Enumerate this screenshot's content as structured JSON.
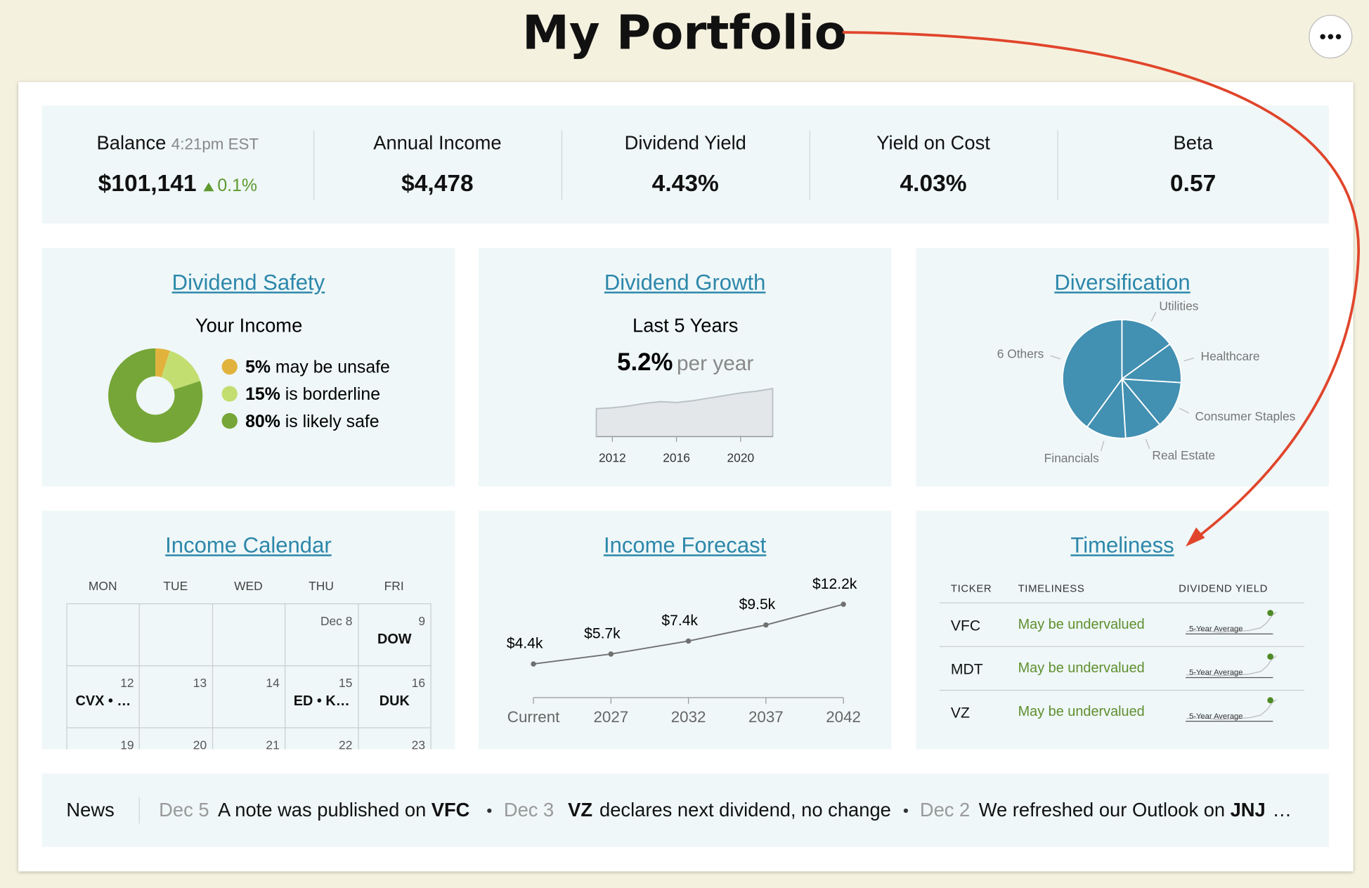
{
  "header": {
    "title": "My Portfolio"
  },
  "summary": {
    "balance": {
      "label": "Balance",
      "time": "4:21pm EST",
      "value": "$101,141",
      "change": "0.1%"
    },
    "stats": [
      {
        "label": "Annual Income",
        "value": "$4,478"
      },
      {
        "label": "Dividend Yield",
        "value": "4.43%"
      },
      {
        "label": "Yield on Cost",
        "value": "4.03%"
      },
      {
        "label": "Beta",
        "value": "0.57"
      }
    ]
  },
  "dividend_safety": {
    "title": "Dividend Safety",
    "chart_data": {
      "type": "donut",
      "title": "Your Income",
      "categories": [
        "may be unsafe",
        "is borderline",
        "is likely safe"
      ],
      "values": [
        5,
        15,
        80
      ],
      "value_labels": [
        "5%",
        "15%",
        "80%"
      ],
      "colors": [
        "#e2b33c",
        "#c3de70",
        "#76a637"
      ]
    }
  },
  "dividend_growth": {
    "title": "Dividend Growth",
    "subtitle": "Last 5 Years",
    "rate": "5.2%",
    "rate_unit": "per year",
    "chart_data": {
      "type": "area",
      "x": [
        2011,
        2012,
        2013,
        2014,
        2015,
        2016,
        2017,
        2018,
        2019,
        2020,
        2021,
        2022
      ],
      "values": [
        32,
        33,
        35,
        38,
        40,
        39,
        41,
        44,
        47,
        50,
        52,
        55
      ],
      "xlim": [
        2011,
        2022
      ],
      "xticks": [
        2012,
        2016,
        2020
      ],
      "ylim": [
        0,
        60
      ],
      "color": "#e3e7ea"
    }
  },
  "diversification": {
    "title": "Diversification",
    "chart_data": {
      "type": "pie",
      "categories": [
        "Utilities",
        "Healthcare",
        "Consumer Staples",
        "Real Estate",
        "Financials",
        "6 Others"
      ],
      "values": [
        15,
        11,
        13,
        10,
        11,
        40
      ],
      "color": "#4290b2"
    }
  },
  "income_calendar": {
    "title": "Income Calendar",
    "days": [
      "MON",
      "TUE",
      "WED",
      "THU",
      "FRI"
    ],
    "weeks": [
      [
        null,
        null,
        null,
        {
          "date": "Dec 8"
        },
        {
          "date": "9",
          "tickers": "DOW"
        }
      ],
      [
        {
          "date": "12",
          "tickers": "CVX • …"
        },
        {
          "date": "13"
        },
        {
          "date": "14"
        },
        {
          "date": "15",
          "tickers": "ED • K…"
        },
        {
          "date": "16",
          "tickers": "DUK"
        }
      ],
      [
        {
          "date": "19"
        },
        {
          "date": "20"
        },
        {
          "date": "21"
        },
        {
          "date": "22"
        },
        {
          "date": "23"
        }
      ]
    ]
  },
  "income_forecast": {
    "title": "Income Forecast",
    "chart_data": {
      "type": "line",
      "categories": [
        "Current",
        "2027",
        "2032",
        "2037",
        "2042"
      ],
      "values": [
        4.4,
        5.7,
        7.4,
        9.5,
        12.2
      ],
      "value_labels": [
        "$4.4k",
        "$5.7k",
        "$7.4k",
        "$9.5k",
        "$12.2k"
      ],
      "ylim": [
        0,
        17
      ],
      "color": "#707070"
    }
  },
  "timeliness": {
    "title": "Timeliness",
    "columns": [
      "TICKER",
      "TIMELINESS",
      "DIVIDEND YIELD"
    ],
    "rows": [
      {
        "ticker": "VFC",
        "timeliness": "May be undervalued",
        "sparkline_label": "5-Year Average"
      },
      {
        "ticker": "MDT",
        "timeliness": "May be undervalued",
        "sparkline_label": "5-Year Average"
      },
      {
        "ticker": "VZ",
        "timeliness": "May be undervalued",
        "sparkline_label": "5-Year Average"
      }
    ]
  },
  "news": {
    "label": "News",
    "items": [
      {
        "date": "Dec 5",
        "parts": [
          {
            "text": "A note was published on"
          },
          {
            "ticker": "VFC"
          }
        ]
      },
      {
        "date": "Dec 3",
        "parts": [
          {
            "ticker": "VZ"
          },
          {
            "text": "declares next dividend, no change"
          }
        ]
      },
      {
        "date": "Dec 2",
        "parts": [
          {
            "text": "We refreshed our Outlook on"
          },
          {
            "ticker": "JNJ"
          },
          {
            "text": "…"
          }
        ]
      }
    ]
  }
}
